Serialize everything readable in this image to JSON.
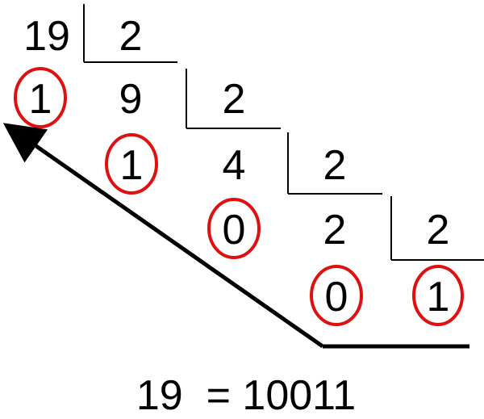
{
  "division_steps": [
    {
      "dividend": "19",
      "divisor": "2",
      "remainder": "1"
    },
    {
      "dividend": "9",
      "divisor": "2",
      "remainder": "1"
    },
    {
      "dividend": "4",
      "divisor": "2",
      "remainder": "0"
    },
    {
      "dividend": "2",
      "divisor": "2",
      "remainder": "0"
    }
  ],
  "final_quotient": "1",
  "result_text": "19  = 10011",
  "colors": {
    "ink": "#000000",
    "highlight": "#e01010",
    "background": "#ffffff"
  }
}
